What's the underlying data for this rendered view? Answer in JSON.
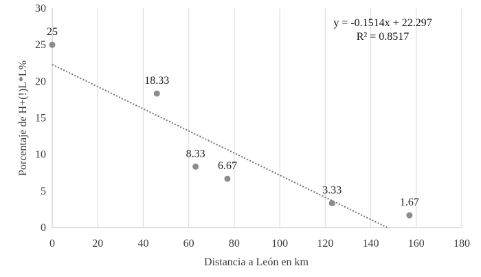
{
  "chart_data": {
    "type": "scatter",
    "title": "",
    "xlabel": "Distancia a León en km",
    "ylabel": "Porcentaje de H+(!)L*L%",
    "xlim": [
      0,
      180
    ],
    "ylim": [
      0,
      30
    ],
    "xticks": [
      0,
      20,
      40,
      60,
      80,
      100,
      120,
      140,
      160,
      180
    ],
    "yticks": [
      0,
      5,
      10,
      15,
      20,
      25,
      30
    ],
    "xtick_labels": [
      "0",
      "20",
      "40",
      "60",
      "80",
      "100",
      "120",
      "140",
      "160",
      "180"
    ],
    "ytick_labels": [
      "0",
      "5",
      "10",
      "15",
      "20",
      "25",
      "30"
    ],
    "grid": "vertical",
    "points": [
      {
        "x": 0,
        "y": 25,
        "label": "25"
      },
      {
        "x": 46,
        "y": 18.33,
        "label": "18.33"
      },
      {
        "x": 63,
        "y": 8.33,
        "label": "8.33"
      },
      {
        "x": 77,
        "y": 6.67,
        "label": "6.67"
      },
      {
        "x": 123,
        "y": 3.33,
        "label": "3.33"
      },
      {
        "x": 157,
        "y": 1.67,
        "label": "1.67"
      }
    ],
    "trendline": {
      "type": "linear",
      "slope": -0.1514,
      "intercept": 22.297,
      "equation": "y = -0.1514x + 22.297",
      "r_squared": "R² = 0.8517"
    },
    "colors": {
      "marker": "#8c8c8c",
      "trendline": "#6e6e6e",
      "grid": "#d9d9d9",
      "axis": "#bfbfbf"
    }
  }
}
